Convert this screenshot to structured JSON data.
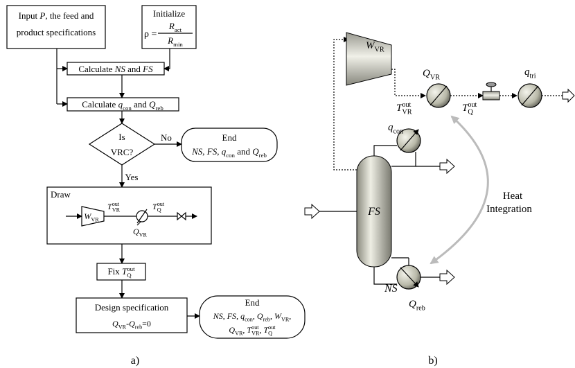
{
  "flowchart": {
    "input": [
      [
        "Input ",
        {
          "main": "P"
        },
        ", the feed and"
      ],
      [
        "product specifications"
      ]
    ],
    "initialize": {
      "title": "Initialize",
      "rho": "ρ =",
      "numerator": [
        {
          "main": "R",
          "sub": "act"
        }
      ],
      "denominator": [
        {
          "main": "R",
          "sub": "min"
        }
      ]
    },
    "calc_ns_fs": [
      "Calculate ",
      {
        "main": "NS"
      },
      " and ",
      {
        "main": "FS"
      }
    ],
    "calc_q": [
      "Calculate ",
      {
        "main": "q",
        "sub": "con"
      },
      " and ",
      {
        "main": "Q",
        "sub": "reb"
      }
    ],
    "decision": {
      "line1": "Is",
      "line2": "VRC?",
      "no": "No",
      "yes": "Yes"
    },
    "end1": {
      "title": "End",
      "text": [
        {
          "main": "NS"
        },
        ", ",
        {
          "main": "FS"
        },
        ", ",
        {
          "main": "q",
          "sub": "con"
        },
        " and ",
        {
          "main": "Q",
          "sub": "reb"
        }
      ]
    },
    "draw": {
      "title": "Draw",
      "w_vr": [
        {
          "main": "W",
          "sub": "VR"
        }
      ],
      "t_vr": [
        {
          "main": "T",
          "sub": "VR",
          "sup": "out"
        }
      ],
      "t_q": [
        {
          "main": "T",
          "sub": "Q",
          "sup": "out"
        }
      ],
      "q_vr": [
        {
          "main": "Q",
          "sub": "VR"
        }
      ]
    },
    "fix": [
      "Fix ",
      {
        "main": "T",
        "sub": "Q",
        "sup": "out"
      }
    ],
    "design": {
      "title": "Design specification",
      "equation": [
        {
          "main": "Q",
          "sub": "VR"
        },
        "-",
        {
          "main": "Q",
          "sub": "reb"
        },
        "=0"
      ]
    },
    "end2": {
      "title": "End",
      "lines": [
        [
          {
            "main": "NS"
          },
          ", ",
          {
            "main": "FS"
          },
          ", ",
          {
            "main": "q",
            "sub": "con"
          },
          ", ",
          {
            "main": "Q",
            "sub": "reb"
          },
          ", ",
          {
            "main": "W",
            "sub": "VR"
          },
          ","
        ],
        [
          {
            "main": "Q",
            "sub": "VR"
          },
          ", ",
          {
            "main": "T",
            "sub": "VR",
            "sup": "out"
          },
          ", ",
          {
            "main": "T",
            "sub": "Q",
            "sup": "out"
          }
        ]
      ]
    },
    "caption": "a)"
  },
  "schematic": {
    "w_vr": [
      {
        "main": "W",
        "sub": "VR"
      }
    ],
    "q_vr": [
      {
        "main": "Q",
        "sub": "VR"
      }
    ],
    "t_vr": [
      {
        "main": "T",
        "sub": "VR",
        "sup": "out"
      }
    ],
    "t_q": [
      {
        "main": "T",
        "sub": "Q",
        "sup": "out"
      }
    ],
    "q_tri": [
      {
        "main": "q",
        "sub": "tri"
      }
    ],
    "q_con": [
      {
        "main": "q",
        "sub": "con"
      }
    ],
    "fs": [
      {
        "main": "FS"
      }
    ],
    "ns": [
      {
        "main": "NS"
      }
    ],
    "q_reb": [
      {
        "main": "Q",
        "sub": "reb"
      }
    ],
    "heat_integration": [
      "Heat",
      "Integration"
    ],
    "caption": "b)"
  }
}
